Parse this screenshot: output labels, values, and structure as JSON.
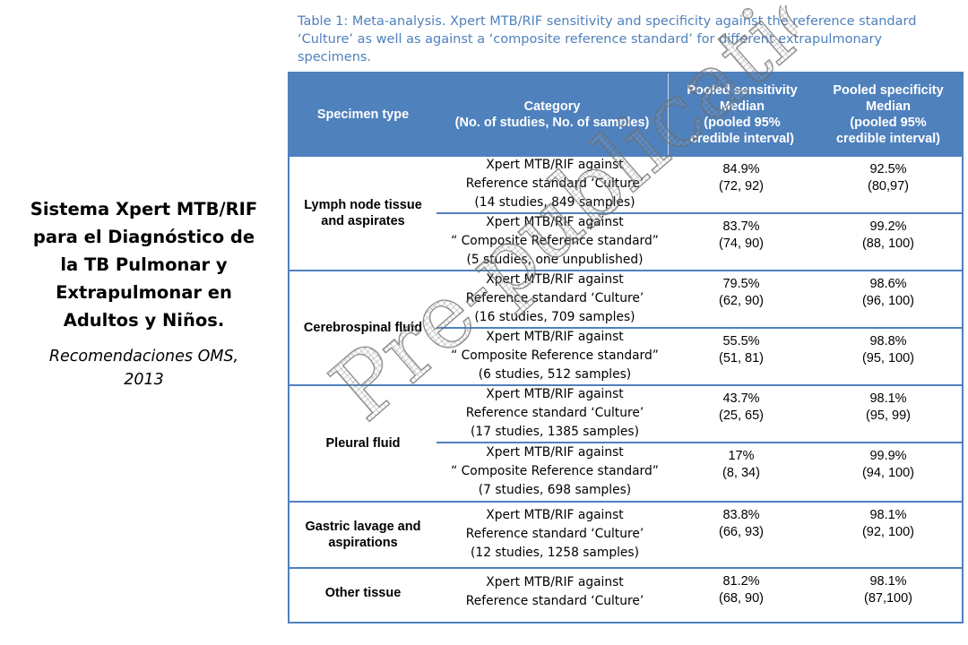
{
  "side": {
    "title_lines": [
      "Sistema Xpert MTB/RIF",
      "para el Diagnóstico de",
      "la TB Pulmonar y",
      "Extrapulmonar en",
      "Adultos y Niños."
    ],
    "subtitle_lines": [
      "Recomendaciones OMS,",
      "2013"
    ]
  },
  "caption": {
    "lines": [
      "Table 1: Meta-analysis. Xpert MTB/RIF sensitivity and specificity against the reference standard",
      "‘Culture’ as well as against a ‘composite reference standard’ for different extrapulmonary",
      "specimens."
    ]
  },
  "watermark": {
    "text": "Pre-publication"
  },
  "table": {
    "headers": {
      "specimen": [
        "Specimen type"
      ],
      "category": [
        "Category",
        "(No. of studies, No. of samples)"
      ],
      "sensitivity": [
        "Pooled sensitivity",
        "Median",
        "(pooled 95%",
        "credible interval)"
      ],
      "specificity": [
        "Pooled specificity",
        "Median",
        "(pooled 95%",
        "credible interval)"
      ]
    },
    "groups": [
      {
        "specimen": [
          "Lymph node tissue",
          "and aspirates"
        ],
        "rows": [
          {
            "category": [
              "Xpert MTB/RIF against",
              "Reference standard ‘Culture’",
              "(14 studies, 849 samples)"
            ],
            "sensitivity": [
              "84.9%",
              "(72, 92)"
            ],
            "specificity": [
              "92.5%",
              "(80,97)"
            ]
          },
          {
            "category": [
              "Xpert MTB/RIF against",
              "“ Composite Reference standard”",
              "(5 studies, one unpublished)"
            ],
            "sensitivity": [
              "83.7%",
              "(74, 90)"
            ],
            "specificity": [
              "99.2%",
              "(88, 100)"
            ]
          }
        ]
      },
      {
        "specimen": [
          "Cerebrospinal fluid"
        ],
        "rows": [
          {
            "category": [
              "Xpert MTB/RIF against",
              "Reference standard ‘Culture’",
              "(16 studies, 709 samples)"
            ],
            "sensitivity": [
              "79.5%",
              "(62, 90)"
            ],
            "specificity": [
              "98.6%",
              "(96, 100)"
            ]
          },
          {
            "category": [
              "Xpert MTB/RIF against",
              "“ Composite Reference standard”",
              "(6 studies, 512 samples)"
            ],
            "sensitivity": [
              "55.5%",
              "(51, 81)"
            ],
            "specificity": [
              "98.8%",
              "(95, 100)"
            ]
          }
        ]
      },
      {
        "specimen": [
          "Pleural fluid"
        ],
        "rows": [
          {
            "category": [
              "Xpert MTB/RIF against",
              "Reference standard ‘Culture’",
              "(17 studies, 1385 samples)"
            ],
            "sensitivity": [
              "43.7%",
              "(25, 65)"
            ],
            "specificity": [
              "98.1%",
              "(95, 99)"
            ]
          },
          {
            "category": [
              "Xpert MTB/RIF against",
              "“ Composite Reference standard”",
              "(7 studies, 698 samples)"
            ],
            "sensitivity": [
              "17%",
              "(8, 34)"
            ],
            "specificity": [
              "99.9%",
              "(94, 100)"
            ]
          }
        ]
      },
      {
        "specimen": [
          "Gastric lavage and",
          "aspirations"
        ],
        "rows": [
          {
            "category": [
              "Xpert MTB/RIF against",
              "Reference standard ‘Culture’",
              "(12 studies, 1258 samples)"
            ],
            "sensitivity": [
              "83.8%",
              "(66, 93)"
            ],
            "specificity": [
              "98.1%",
              "(92, 100)"
            ]
          }
        ]
      },
      {
        "specimen": [
          "Other tissue"
        ],
        "rows": [
          {
            "category": [
              "Xpert MTB/RIF against",
              "Reference standard ‘Culture’"
            ],
            "sensitivity": [
              "81.2%",
              "(68, 90)"
            ],
            "specificity": [
              "98.1%",
              "(87,100)"
            ]
          }
        ]
      }
    ]
  }
}
